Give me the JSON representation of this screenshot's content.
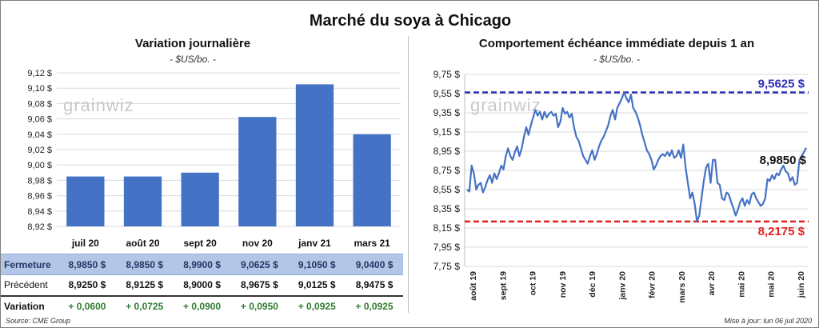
{
  "header": {
    "title": "Marché du soya à Chicago"
  },
  "watermark": "grainwiz",
  "left_panel": {
    "title": "Variation  journalière",
    "unit": "- $US/bo. -"
  },
  "right_panel": {
    "title": "Comportement  échéance immédiate depuis 1 an",
    "unit": "- $US/bo. -"
  },
  "colors": {
    "bar": "#4472c4",
    "line": "#4472c4",
    "top_line": "#2e2eb8",
    "bottom_line": "#e02020",
    "last_label": "#111111",
    "variation_text": "#2e7d32"
  },
  "table": {
    "row_labels": {
      "close": "Fermeture",
      "prev": "Précédent",
      "var": "Variation"
    },
    "close": [
      "8,9850  $",
      "8,9850  $",
      "8,9900  $",
      "9,0625  $",
      "9,1050  $",
      "9,0400  $"
    ],
    "prev": [
      "8,9250  $",
      "8,9125  $",
      "8,9000  $",
      "8,9675  $",
      "9,0125  $",
      "8,9475  $"
    ],
    "var": [
      "+ 0,0600",
      "+ 0,0725",
      "+ 0,0900",
      "+ 0,0950",
      "+ 0,0925",
      "+ 0,0925"
    ]
  },
  "footer": {
    "source": "Source: CME Group",
    "update": "Mise à jour: lun 06 juil 2020"
  },
  "chart_data": [
    {
      "type": "bar",
      "categories": [
        "juil 20",
        "août 20",
        "sept 20",
        "nov 20",
        "janv 21",
        "mars 21"
      ],
      "values": [
        8.985,
        8.985,
        8.99,
        9.0625,
        9.105,
        9.04
      ],
      "ylim": [
        8.92,
        9.12
      ],
      "yticks": [
        8.92,
        8.94,
        8.96,
        8.98,
        9.0,
        9.02,
        9.04,
        9.06,
        9.08,
        9.1,
        9.12
      ],
      "ytick_labels": [
        "8,92 $",
        "8,94 $",
        "8,96 $",
        "8,98 $",
        "9,00 $",
        "9,02 $",
        "9,04 $",
        "9,06 $",
        "9,08 $",
        "9,10 $",
        "9,12 $"
      ]
    },
    {
      "type": "line",
      "ylim": [
        7.75,
        9.75
      ],
      "yticks": [
        7.75,
        7.95,
        8.15,
        8.35,
        8.55,
        8.75,
        8.95,
        9.15,
        9.35,
        9.55,
        9.75
      ],
      "ytick_labels": [
        "7,75 $",
        "7,95 $",
        "8,15 $",
        "8,35 $",
        "8,55 $",
        "8,75 $",
        "8,95 $",
        "9,15 $",
        "9,35 $",
        "9,55 $",
        "9,75 $"
      ],
      "x_labels": [
        "août 19",
        "sept 19",
        "oct 19",
        "nov 19",
        "déc 19",
        "janv 20",
        "févr 20",
        "mars 20",
        "avr 20",
        "mai 20",
        "mai 20",
        "juin 20"
      ],
      "reference_lines": [
        {
          "value": 9.5625,
          "label": "9,5625  $",
          "color": "#2e2eb8"
        },
        {
          "value": 8.2175,
          "label": "8,2175  $",
          "color": "#e02020"
        }
      ],
      "last_label": "8,9850 $",
      "series": [
        {
          "values": [
            8.55,
            8.53,
            8.8,
            8.72,
            8.55,
            8.6,
            8.62,
            8.52,
            8.58,
            8.65,
            8.7,
            8.62,
            8.72,
            8.66,
            8.72,
            8.8,
            8.76,
            8.9,
            8.98,
            8.9,
            8.86,
            8.94,
            9.0,
            8.9,
            8.98,
            9.1,
            9.2,
            9.12,
            9.22,
            9.3,
            9.38,
            9.32,
            9.36,
            9.28,
            9.36,
            9.3,
            9.34,
            9.36,
            9.32,
            9.34,
            9.2,
            9.26,
            9.4,
            9.34,
            9.36,
            9.3,
            9.34,
            9.2,
            9.1,
            9.06,
            8.98,
            8.9,
            8.86,
            8.82,
            8.9,
            8.96,
            8.86,
            8.92,
            9.0,
            9.06,
            9.1,
            9.16,
            9.22,
            9.32,
            9.38,
            9.28,
            9.4,
            9.45,
            9.5,
            9.5625,
            9.5,
            9.46,
            9.54,
            9.4,
            9.36,
            9.3,
            9.22,
            9.12,
            9.04,
            8.96,
            8.92,
            8.86,
            8.76,
            8.8,
            8.86,
            8.9,
            8.92,
            8.9,
            8.94,
            8.9,
            8.96,
            8.88,
            8.9,
            8.96,
            8.88,
            9.02,
            8.78,
            8.62,
            8.46,
            8.52,
            8.4,
            8.22,
            8.28,
            8.46,
            8.64,
            8.78,
            8.82,
            8.62,
            8.86,
            8.86,
            8.62,
            8.6,
            8.46,
            8.44,
            8.52,
            8.5,
            8.42,
            8.36,
            8.28,
            8.34,
            8.42,
            8.46,
            8.38,
            8.44,
            8.4,
            8.5,
            8.52,
            8.46,
            8.42,
            8.38,
            8.4,
            8.46,
            8.66,
            8.64,
            8.7,
            8.66,
            8.72,
            8.7,
            8.76,
            8.8,
            8.74,
            8.72,
            8.64,
            8.68,
            8.6,
            8.62,
            8.86,
            8.9,
            8.94,
            8.985
          ]
        }
      ]
    }
  ]
}
